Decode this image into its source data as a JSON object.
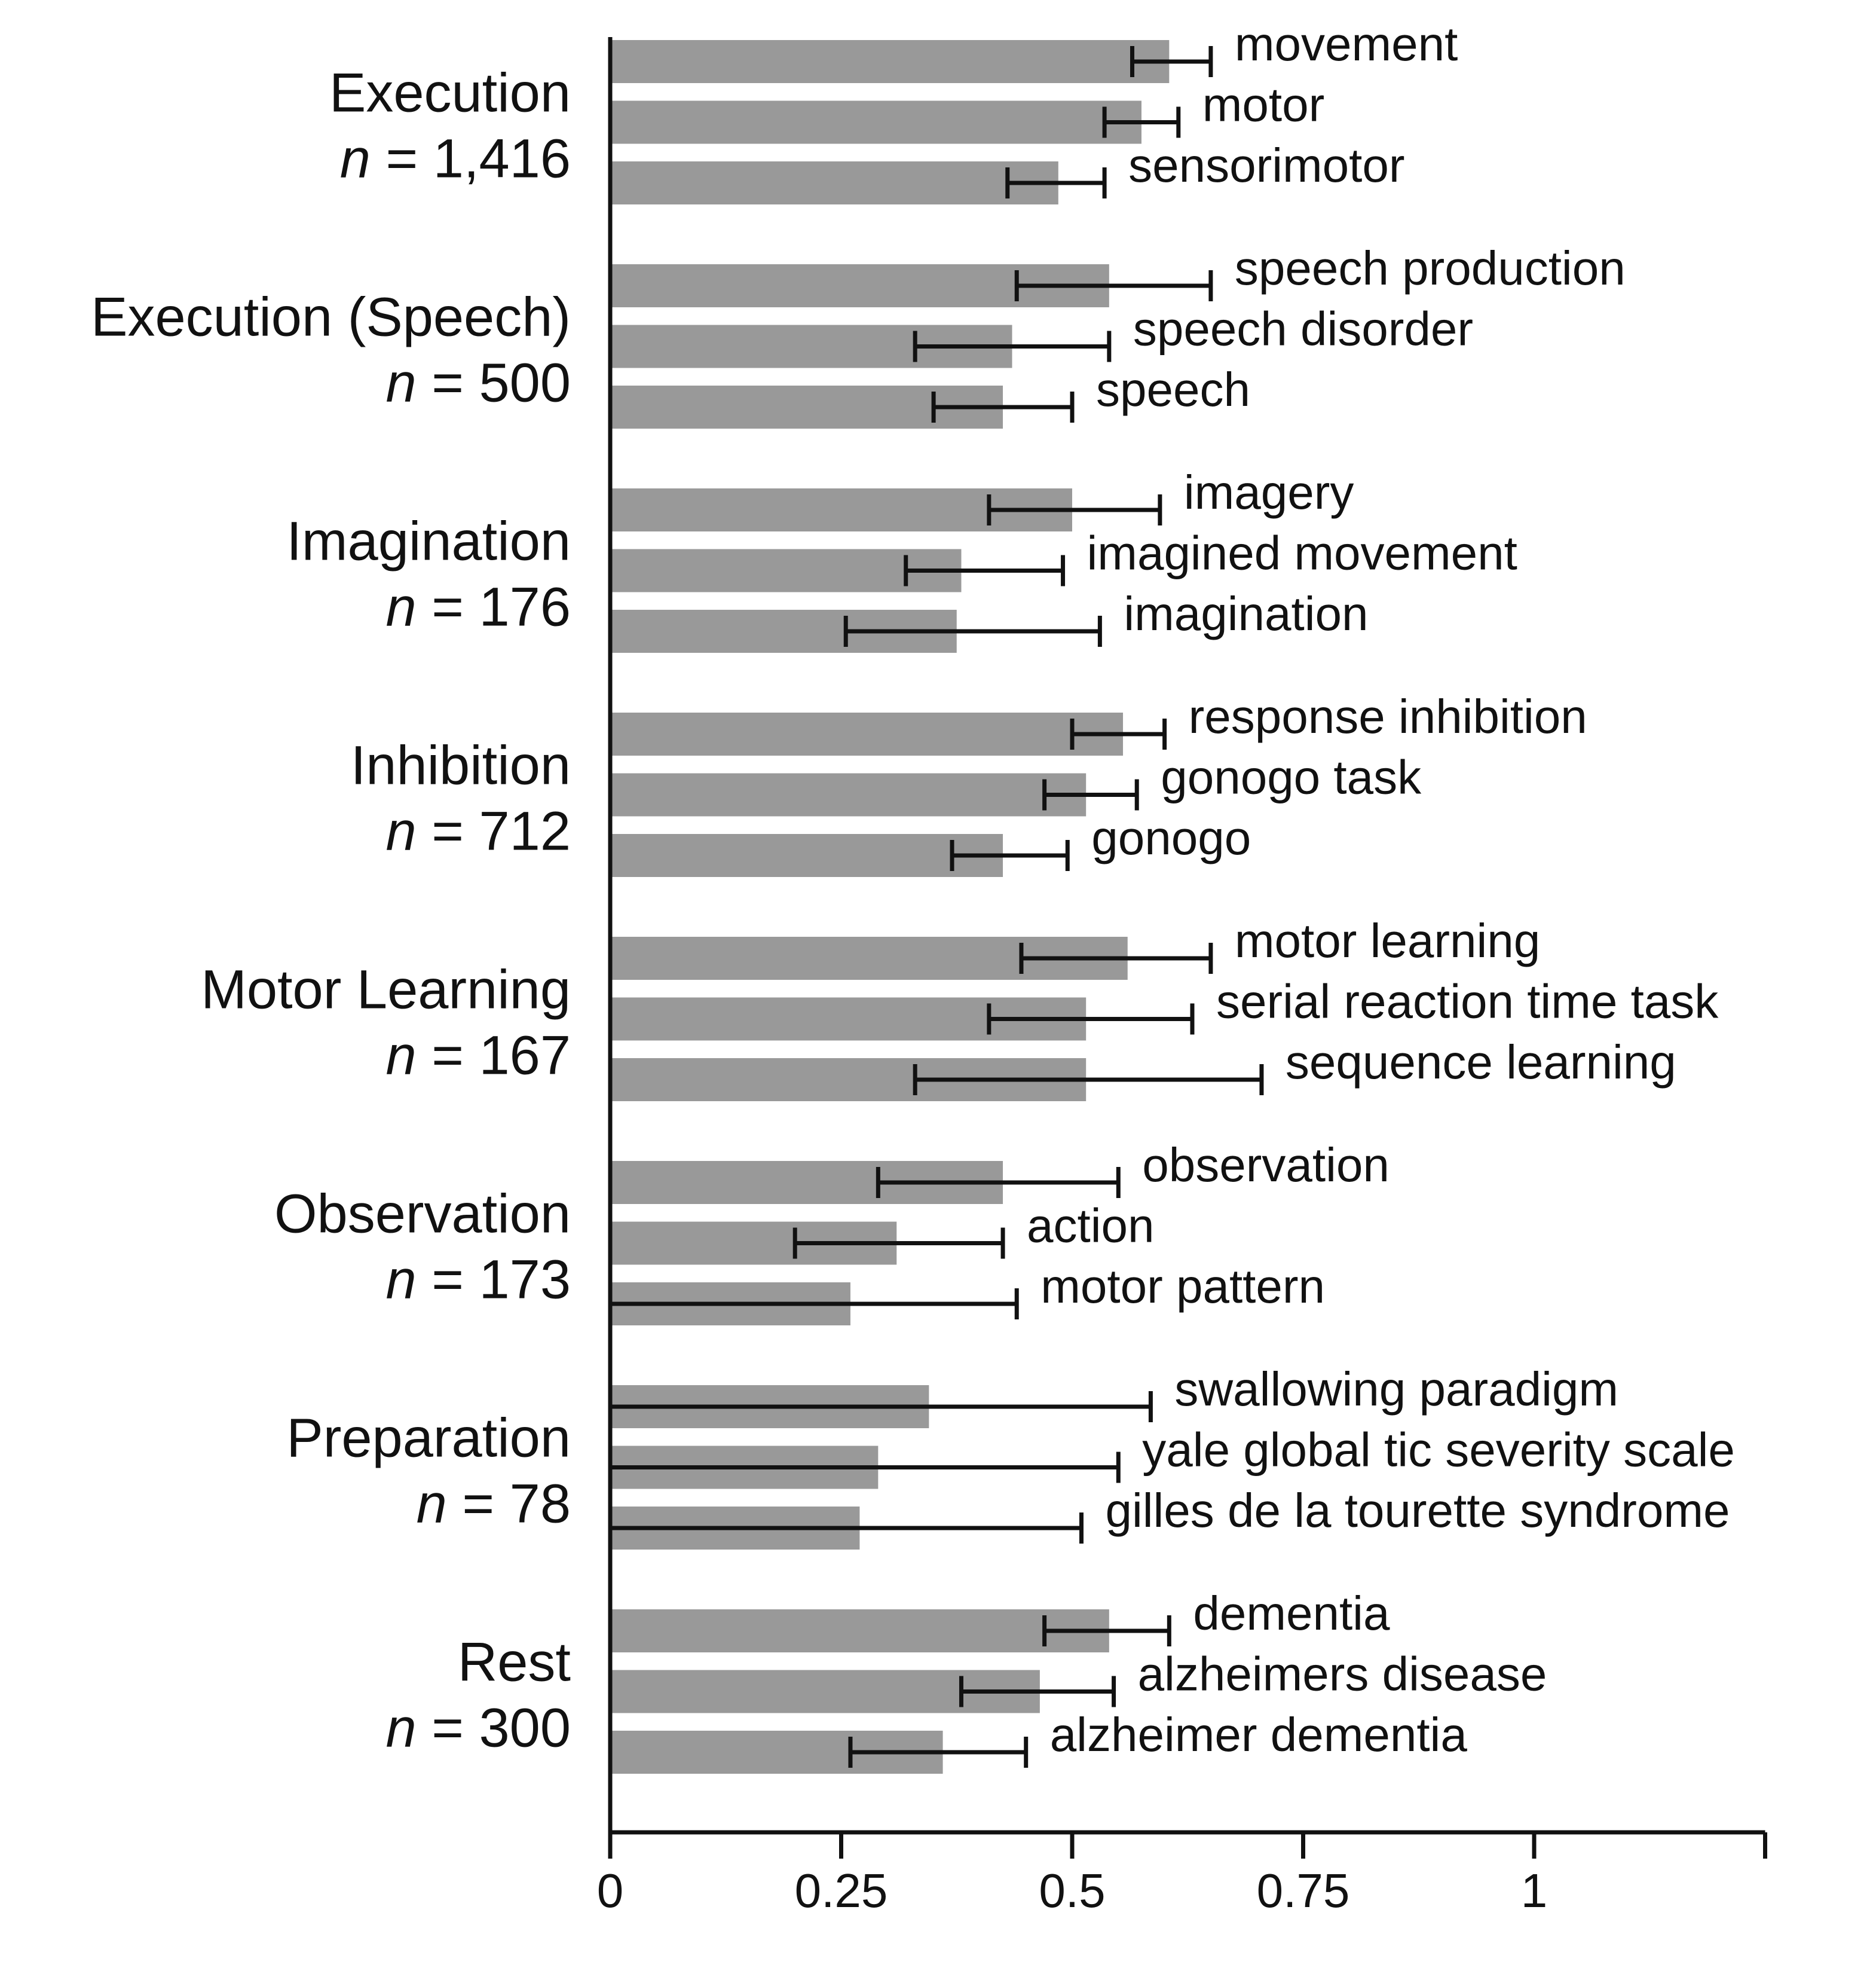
{
  "chart_data": {
    "type": "bar",
    "orientation": "horizontal",
    "title": "",
    "xlabel": "",
    "ylabel": "",
    "xlim": [
      0,
      1.25
    ],
    "xticks": [
      0,
      0.25,
      0.5,
      0.75,
      1
    ],
    "xtick_labels": [
      "0",
      "0.25",
      "0.5",
      "0.75",
      "1"
    ],
    "grid": false,
    "legend": "none",
    "bar_color": "#999999",
    "error_bar_color": "#111111",
    "groups": [
      {
        "name": "Execution",
        "n_prefix": "n",
        "n_suffix": " = 1,416",
        "items": [
          {
            "label": "movement",
            "value": 0.605,
            "err_low": 0.565,
            "err_high": 0.65
          },
          {
            "label": "motor",
            "value": 0.575,
            "err_low": 0.535,
            "err_high": 0.615
          },
          {
            "label": "sensorimotor",
            "value": 0.485,
            "err_low": 0.43,
            "err_high": 0.535
          }
        ]
      },
      {
        "name": "Execution (Speech)",
        "n_prefix": "n",
        "n_suffix": " = 500",
        "items": [
          {
            "label": "speech production",
            "value": 0.54,
            "err_low": 0.44,
            "err_high": 0.65
          },
          {
            "label": "speech disorder",
            "value": 0.435,
            "err_low": 0.33,
            "err_high": 0.54
          },
          {
            "label": "speech",
            "value": 0.425,
            "err_low": 0.35,
            "err_high": 0.5
          }
        ]
      },
      {
        "name": "Imagination",
        "n_prefix": "n",
        "n_suffix": " = 176",
        "items": [
          {
            "label": "imagery",
            "value": 0.5,
            "err_low": 0.41,
            "err_high": 0.595
          },
          {
            "label": "imagined movement",
            "value": 0.38,
            "err_low": 0.32,
            "err_high": 0.49
          },
          {
            "label": "imagination",
            "value": 0.375,
            "err_low": 0.255,
            "err_high": 0.53
          }
        ]
      },
      {
        "name": "Inhibition",
        "n_prefix": "n",
        "n_suffix": " = 712",
        "items": [
          {
            "label": "response inhibition",
            "value": 0.555,
            "err_low": 0.5,
            "err_high": 0.6
          },
          {
            "label": "gonogo task",
            "value": 0.515,
            "err_low": 0.47,
            "err_high": 0.57
          },
          {
            "label": "gonogo",
            "value": 0.425,
            "err_low": 0.37,
            "err_high": 0.495
          }
        ]
      },
      {
        "name": "Motor Learning",
        "n_prefix": "n",
        "n_suffix": " = 167",
        "items": [
          {
            "label": "motor learning",
            "value": 0.56,
            "err_low": 0.445,
            "err_high": 0.65
          },
          {
            "label": "serial reaction time task",
            "value": 0.515,
            "err_low": 0.41,
            "err_high": 0.63
          },
          {
            "label": "sequence learning",
            "value": 0.515,
            "err_low": 0.33,
            "err_high": 0.705
          }
        ]
      },
      {
        "name": "Observation",
        "n_prefix": "n",
        "n_suffix": " = 173",
        "items": [
          {
            "label": "observation",
            "value": 0.425,
            "err_low": 0.29,
            "err_high": 0.55
          },
          {
            "label": "action",
            "value": 0.31,
            "err_low": 0.2,
            "err_high": 0.425
          },
          {
            "label": "motor pattern",
            "value": 0.26,
            "err_low": 0.0,
            "err_high": 0.44
          }
        ]
      },
      {
        "name": "Preparation",
        "n_prefix": "n",
        "n_suffix": " = 78",
        "items": [
          {
            "label": "swallowing paradigm",
            "value": 0.345,
            "err_low": 0.0,
            "err_high": 0.585
          },
          {
            "label": "yale global tic severity scale",
            "value": 0.29,
            "err_low": 0.0,
            "err_high": 0.55
          },
          {
            "label": "gilles de la tourette syndrome",
            "value": 0.27,
            "err_low": 0.0,
            "err_high": 0.51
          }
        ]
      },
      {
        "name": "Rest",
        "n_prefix": "n",
        "n_suffix": " = 300",
        "items": [
          {
            "label": "dementia",
            "value": 0.54,
            "err_low": 0.47,
            "err_high": 0.605
          },
          {
            "label": "alzheimers disease",
            "value": 0.465,
            "err_low": 0.38,
            "err_high": 0.545
          },
          {
            "label": "alzheimer dementia",
            "value": 0.36,
            "err_low": 0.26,
            "err_high": 0.45
          }
        ]
      }
    ]
  }
}
